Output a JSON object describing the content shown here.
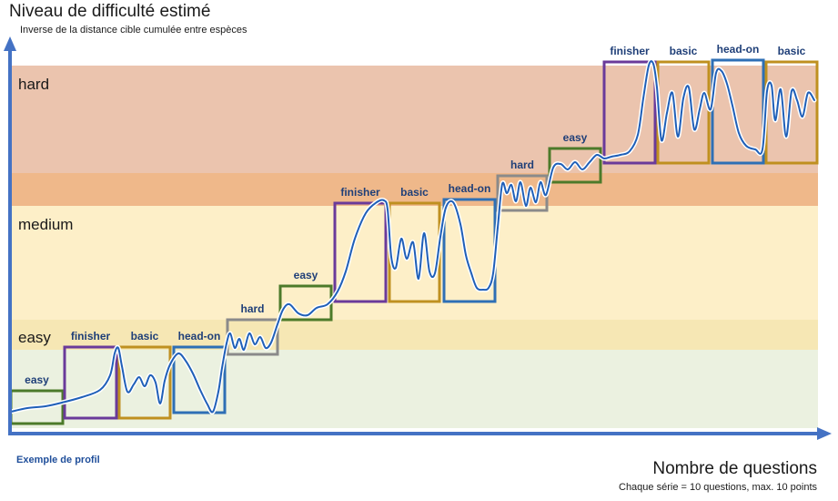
{
  "title": "Niveau de difficulté estimé",
  "subtitle": "Inverse de la distance cible cumulée entre espèces",
  "profile_label": "Exemple de profil",
  "x_title": "Nombre de questions",
  "x_subtitle": "Chaque série = 10 questions, max. 10 points",
  "zones": [
    {
      "name": "hard",
      "color": "#ebc4ae"
    },
    {
      "name": "medium",
      "color": "#fdefc8"
    },
    {
      "name": "easy",
      "color": "#ebf1e0"
    }
  ],
  "transition_colors": [
    "#efb88a",
    "#f6e7b4"
  ],
  "series_types": {
    "easy": {
      "label": "easy",
      "color": "#4c7a2a"
    },
    "finisher": {
      "label": "finisher",
      "color": "#6a3a9a"
    },
    "basic": {
      "label": "basic",
      "color": "#bf9020"
    },
    "head-on": {
      "label": "head-on",
      "color": "#2e6fb5"
    },
    "hard": {
      "label": "hard",
      "color": "#8a8a8a"
    }
  },
  "series": [
    {
      "type": "easy"
    },
    {
      "type": "finisher"
    },
    {
      "type": "basic"
    },
    {
      "type": "head-on"
    },
    {
      "type": "hard"
    },
    {
      "type": "easy"
    },
    {
      "type": "finisher"
    },
    {
      "type": "basic"
    },
    {
      "type": "head-on"
    },
    {
      "type": "hard"
    },
    {
      "type": "easy"
    },
    {
      "type": "finisher"
    },
    {
      "type": "basic"
    },
    {
      "type": "head-on"
    },
    {
      "type": "basic"
    }
  ],
  "line_color": "#1f5fb8",
  "axis_color": "#4472c4"
}
